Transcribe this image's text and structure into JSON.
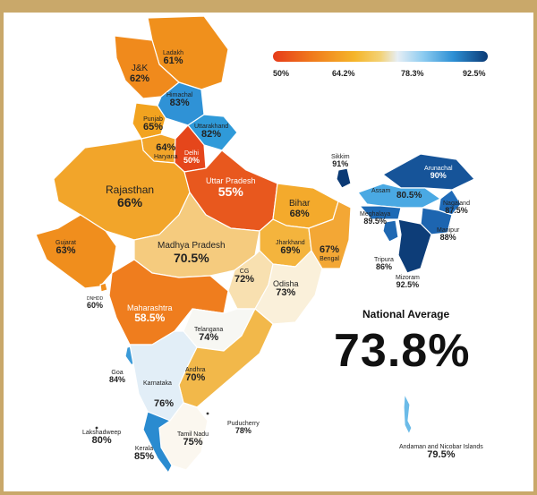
{
  "legend": {
    "ticks": [
      "50%",
      "64.2%",
      "78.3%",
      "92.5%"
    ]
  },
  "national": {
    "title": "National Average",
    "value": "73.8%"
  },
  "regions": {
    "ladakh": {
      "name": "Ladakh",
      "value": "61%"
    },
    "jk": {
      "name": "J&K",
      "value": "62%"
    },
    "himachal": {
      "name": "Himachal",
      "value": "83%"
    },
    "punjab": {
      "name": "Punjab",
      "value": "65%"
    },
    "uttarakhand": {
      "name": "Uttarakhand",
      "value": "82%"
    },
    "haryana": {
      "name": "Haryana",
      "value": "64%"
    },
    "delhi": {
      "name": "Delhi",
      "value": "50%"
    },
    "rajasthan": {
      "name": "Rajasthan",
      "value": "66%"
    },
    "up": {
      "name": "Uttar Pradesh",
      "value": "55%"
    },
    "bihar": {
      "name": "Bihar",
      "value": "68%"
    },
    "gujarat": {
      "name": "Gujarat",
      "value": "63%"
    },
    "mp": {
      "name": "Madhya Pradesh",
      "value": "70.5%"
    },
    "jharkhand": {
      "name": "Jharkhand",
      "value": "69%"
    },
    "bengal": {
      "name": "Bengal",
      "value": "67%"
    },
    "cg": {
      "name": "CG",
      "value": "72%"
    },
    "odisha": {
      "name": "Odisha",
      "value": "73%"
    },
    "ddnh": {
      "name": "DNHDD",
      "value": "60%"
    },
    "maharashtra": {
      "name": "Maharashtra",
      "value": "58.5%"
    },
    "telangana": {
      "name": "Telangana",
      "value": "74%"
    },
    "goa": {
      "name": "Goa",
      "value": "84%"
    },
    "andhra": {
      "name": "Andhra",
      "value": "70%"
    },
    "karnataka": {
      "name": "Karnataka",
      "value": "76%"
    },
    "lakshadweep": {
      "name": "Lakshadweep",
      "value": "80%"
    },
    "puducherry": {
      "name": "Puducherry",
      "value": "78%"
    },
    "tamilnadu": {
      "name": "Tamil Nadu",
      "value": "75%"
    },
    "kerala": {
      "name": "Kerala",
      "value": "85%"
    },
    "sikkim": {
      "name": "Sikkim",
      "value": "91%"
    },
    "arunachal": {
      "name": "Arunachal",
      "value": "90%"
    },
    "assam": {
      "name": "Assam",
      "value": "80.5%"
    },
    "nagaland": {
      "name": "Nagaland",
      "value": "87.5%"
    },
    "meghalaya": {
      "name": "Meghalaya",
      "value": "89.5%"
    },
    "manipur": {
      "name": "Manipur",
      "value": "88%"
    },
    "tripura": {
      "name": "Tripura",
      "value": "86%"
    },
    "mizoram": {
      "name": "Mizoram",
      "value": "92.5%"
    },
    "andaman": {
      "name": "Andaman and Nicobar Islands",
      "value": "79.5%"
    }
  }
}
